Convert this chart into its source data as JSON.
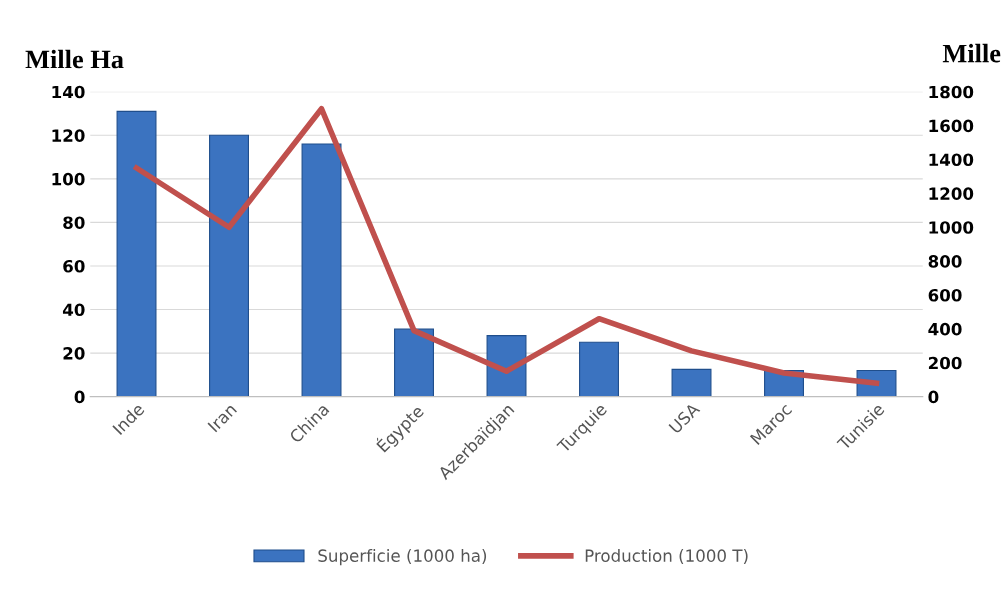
{
  "chart_data": {
    "type": "bar",
    "ylabel": "Mille Ha",
    "y2label": "Mille",
    "categories": [
      "Inde",
      "Iran",
      "China",
      "Égypte",
      "Azerbaïdjan",
      "Turquie",
      "USA",
      "Maroc",
      "Tunisie"
    ],
    "series": [
      {
        "name": "Superficie (1000 ha)",
        "color": "#3b73c0",
        "values": [
          131,
          120,
          116,
          31,
          28,
          25,
          12.5,
          12,
          12
        ]
      },
      {
        "name": "Production (1000 T)",
        "type": "line",
        "axis": "y2",
        "color": "#c0504d",
        "values": [
          1350,
          1000,
          1700,
          390,
          150,
          460,
          270,
          140,
          80
        ]
      }
    ],
    "ylim": [
      0,
      140
    ],
    "yticks": [
      0,
      20,
      40,
      60,
      80,
      100,
      120,
      140
    ],
    "y2lim": [
      0,
      1800
    ],
    "y2ticks": [
      0,
      200,
      400,
      600,
      800,
      1000,
      1200,
      1400,
      1600,
      1800
    ],
    "grid": "y",
    "legend": "bottom",
    "marker": "none",
    "line_style": "solid"
  }
}
